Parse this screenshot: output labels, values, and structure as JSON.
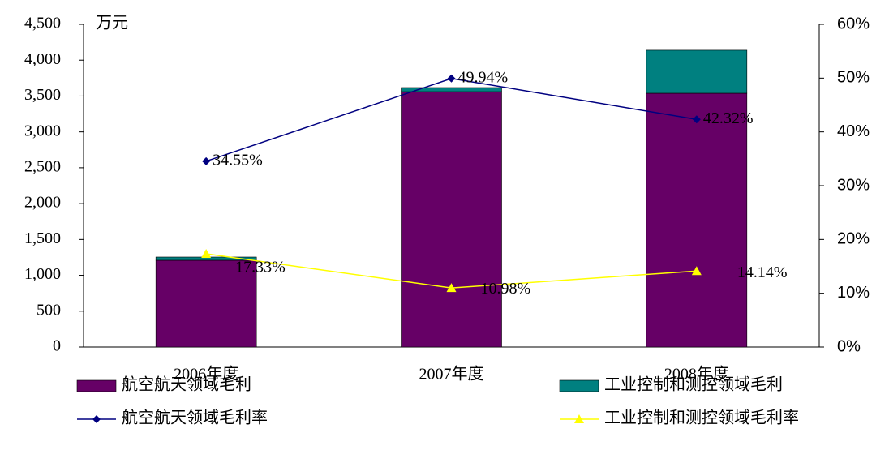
{
  "chart_data": {
    "type": "bar",
    "stacked": true,
    "y_label": "万元",
    "categories": [
      "2006年度",
      "2007年度",
      "2008年度"
    ],
    "series": [
      {
        "name": "航空航天领域毛利",
        "color": "#660066",
        "values": [
          1210,
          3561,
          3539
        ]
      },
      {
        "name": "工业控制和测控领域毛利",
        "color": "#008080",
        "values": [
          45,
          57,
          600
        ]
      },
      {
        "name": "航空航天领域毛利率",
        "type": "line",
        "axis": "y2",
        "marker": "diamond",
        "color": "#000080",
        "values": [
          34.55,
          49.94,
          42.32
        ],
        "value_labels": [
          "34.55%",
          "49.94%",
          "42.32%"
        ]
      },
      {
        "name": "工业控制和测控领域毛利率",
        "type": "line",
        "axis": "y2",
        "marker": "triangle",
        "color": "#ffff00",
        "values": [
          17.33,
          10.98,
          14.14
        ],
        "value_labels": [
          "17.33%",
          "10.98%",
          "14.14%"
        ]
      }
    ],
    "ylim": [
      0,
      4500
    ],
    "yticks": [
      0,
      500,
      {
        "value": 1000,
        "label": "1,000"
      },
      {
        "value": 1500,
        "label": "1,500"
      },
      {
        "value": 2000,
        "label": "2,000"
      },
      {
        "value": 2500,
        "label": "2,500"
      },
      {
        "value": 3000,
        "label": "3,000"
      },
      {
        "value": 3500,
        "label": "3,500"
      },
      {
        "value": 4000,
        "label": "4,000"
      },
      {
        "value": 4500,
        "label": "4,500"
      }
    ],
    "y2lim": [
      0,
      60
    ],
    "y2ticks": [
      {
        "value": 0,
        "label": "0%"
      },
      {
        "value": 10,
        "label": "10%"
      },
      {
        "value": 20,
        "label": "20%"
      },
      {
        "value": 30,
        "label": "30%"
      },
      {
        "value": 40,
        "label": "40%"
      },
      {
        "value": 50,
        "label": "50%"
      },
      {
        "value": 60,
        "label": "60%"
      }
    ],
    "grid": false
  }
}
